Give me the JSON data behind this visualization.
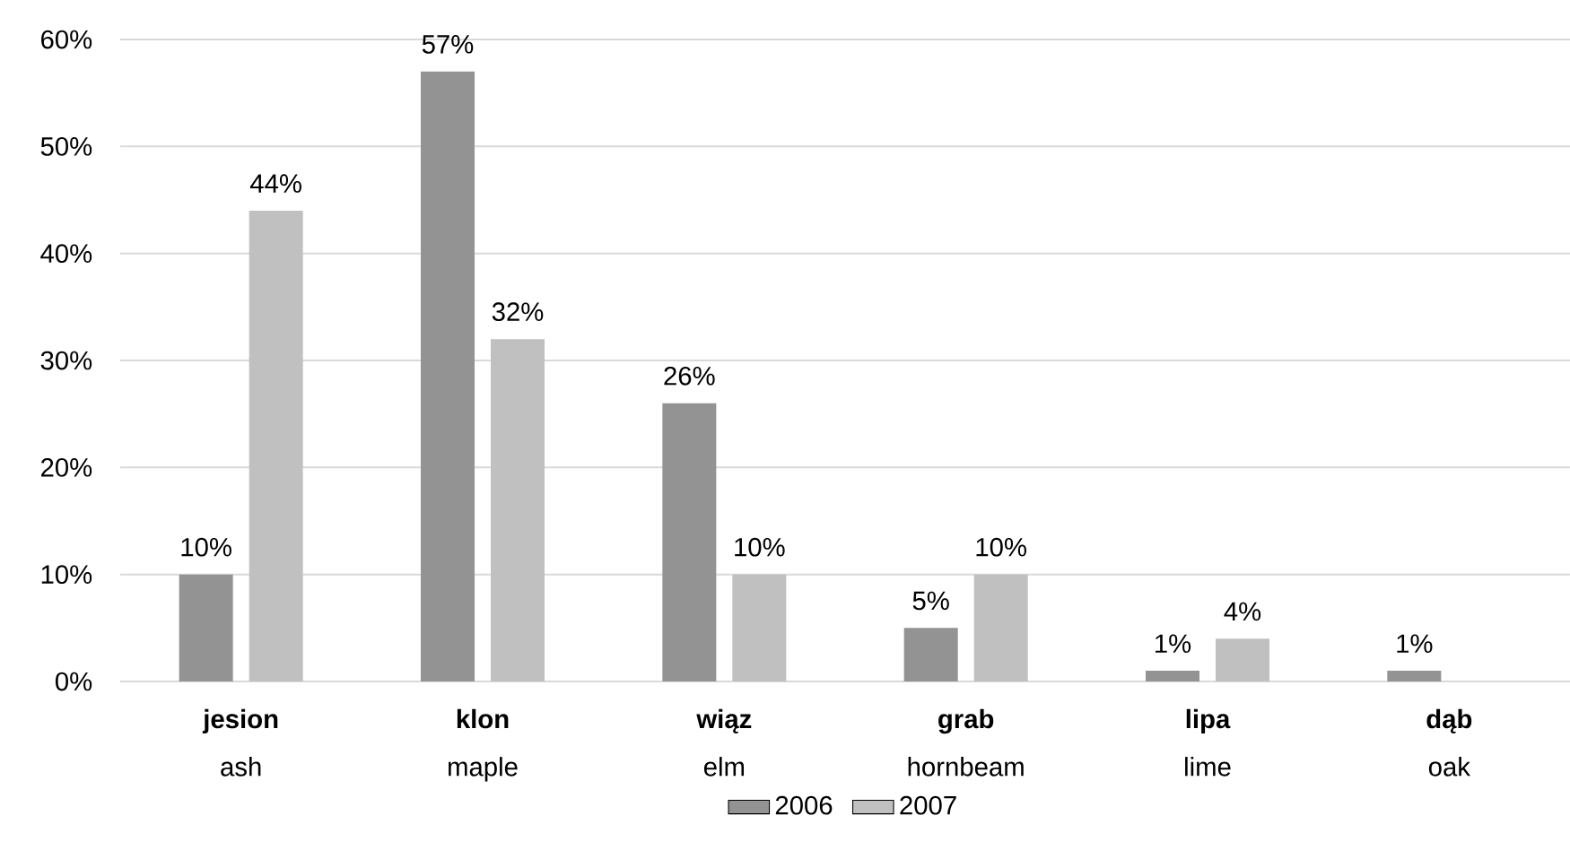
{
  "chart_data": {
    "type": "bar",
    "categories": [
      "**jesion** ash",
      "**klon** maple",
      "**wiąz** elm",
      "**grab** hornbeam",
      "**lipa** lime",
      "**dąb** oak"
    ],
    "series": [
      {
        "name": "2006",
        "color": "#939393",
        "values": [
          10,
          57,
          26,
          5,
          1,
          1
        ],
        "value_labels": [
          "10%",
          "57%",
          "26%",
          "5%",
          "1%",
          "1%"
        ]
      },
      {
        "name": "2007",
        "color": "#c0c0c0",
        "values": [
          44,
          32,
          10,
          10,
          4,
          null
        ],
        "value_labels": [
          "44%",
          "32%",
          "10%",
          "10%",
          "4%",
          null
        ]
      }
    ],
    "ylim": [
      0,
      60
    ],
    "yticks": [
      {
        "value": 0,
        "label": "0%"
      },
      {
        "value": 10,
        "label": "10%"
      },
      {
        "value": 20,
        "label": "20%"
      },
      {
        "value": 30,
        "label": "30%"
      },
      {
        "value": 40,
        "label": "40%"
      },
      {
        "value": 50,
        "label": "50%"
      },
      {
        "value": 60,
        "label": "60%"
      }
    ],
    "grid": "y",
    "legend": "bottom"
  }
}
